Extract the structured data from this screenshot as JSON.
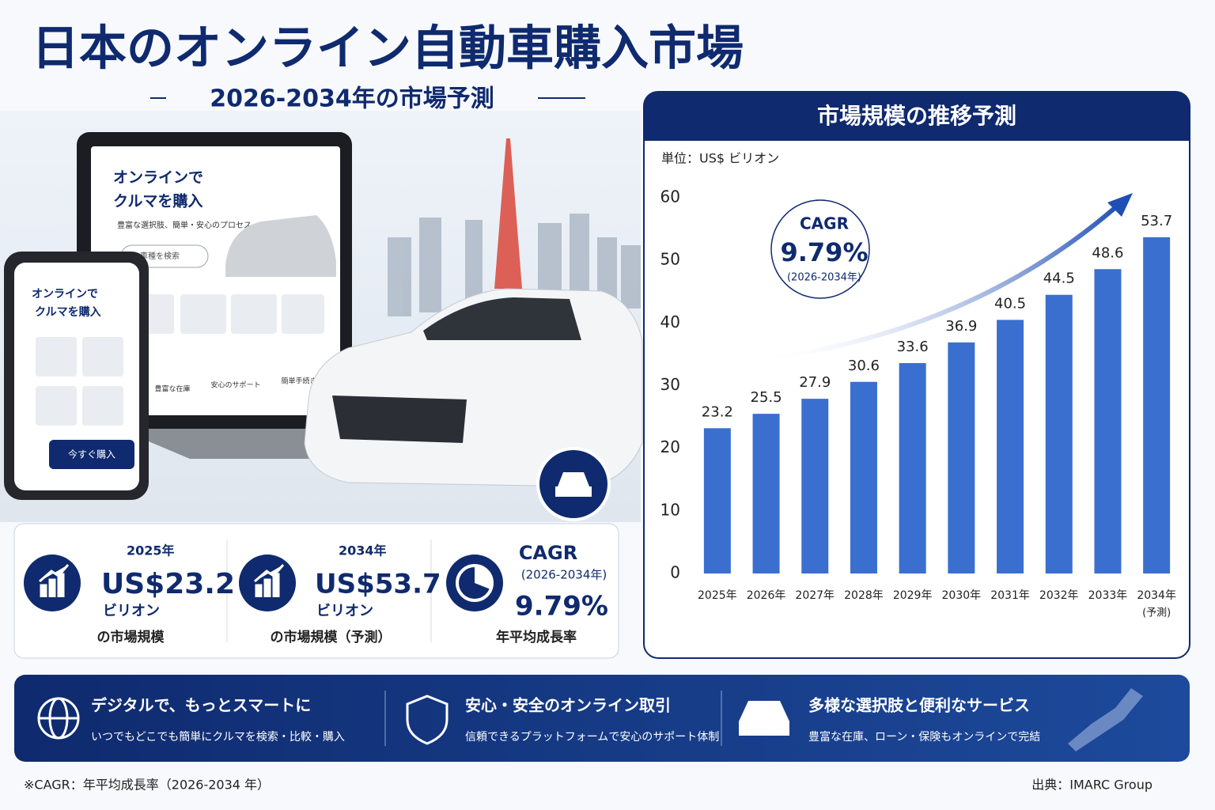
{
  "header": {
    "title": "日本のオンライン自動車購入市場",
    "subtitle": "2026-2034年の市場予測"
  },
  "illustration": {
    "laptop": {
      "heading": [
        "オンラインで",
        "クルマを購入"
      ],
      "tagline": "豊富な選択肢、簡単・安心のプロセス",
      "search": "車種を検索",
      "features": [
        "豊富な在庫",
        "安心のサポート",
        "簡単手続き"
      ]
    },
    "phone": {
      "heading": [
        "オンラインで",
        "クルマを購入"
      ],
      "button": "今すぐ購入"
    }
  },
  "stats": [
    {
      "year": "2025年",
      "value": "US$23.2",
      "unit": "ビリオン",
      "caption": "の市場規模"
    },
    {
      "year": "2034年",
      "value": "US$53.7",
      "unit": "ビリオン",
      "caption": "の市場規模（予測）"
    },
    {
      "title": "CAGR",
      "period": "(2026-2034年)",
      "value": "9.79%",
      "caption": "年平均成長率"
    }
  ],
  "chart_data": {
    "type": "bar",
    "title": "市場規模の推移予測",
    "unit_label": "単位：US$ ビリオン",
    "categories": [
      "2025年",
      "2026年",
      "2027年",
      "2028年",
      "2029年",
      "2030年",
      "2031年",
      "2032年",
      "2033年",
      "2034年"
    ],
    "forecast_note": "(予測)",
    "values": [
      23.2,
      25.5,
      27.9,
      30.6,
      33.6,
      36.9,
      40.5,
      44.5,
      48.6,
      53.7
    ],
    "color": "#3a6fd0",
    "ylim": [
      0,
      60
    ],
    "yticks": [
      0,
      10,
      20,
      30,
      40,
      50,
      60
    ],
    "grid": false,
    "annotation": {
      "label": "CAGR",
      "value": "9.79%",
      "period": "(2026-2034年)"
    }
  },
  "features": [
    {
      "title": "デジタルで、もっとスマートに",
      "text": "いつでもどこでも簡単にクルマを検索・比較・購入"
    },
    {
      "title": "安心・安全のオンライン取引",
      "text": "信頼できるプラットフォームで安心のサポート体制"
    },
    {
      "title": "多様な選択肢と便利なサービス",
      "text": "豊富な在庫、ローン・保険もオンラインで完結"
    }
  ],
  "footnote": "※CAGR：年平均成長率（2026-2034 年）",
  "source": "出典：IMARC Group"
}
